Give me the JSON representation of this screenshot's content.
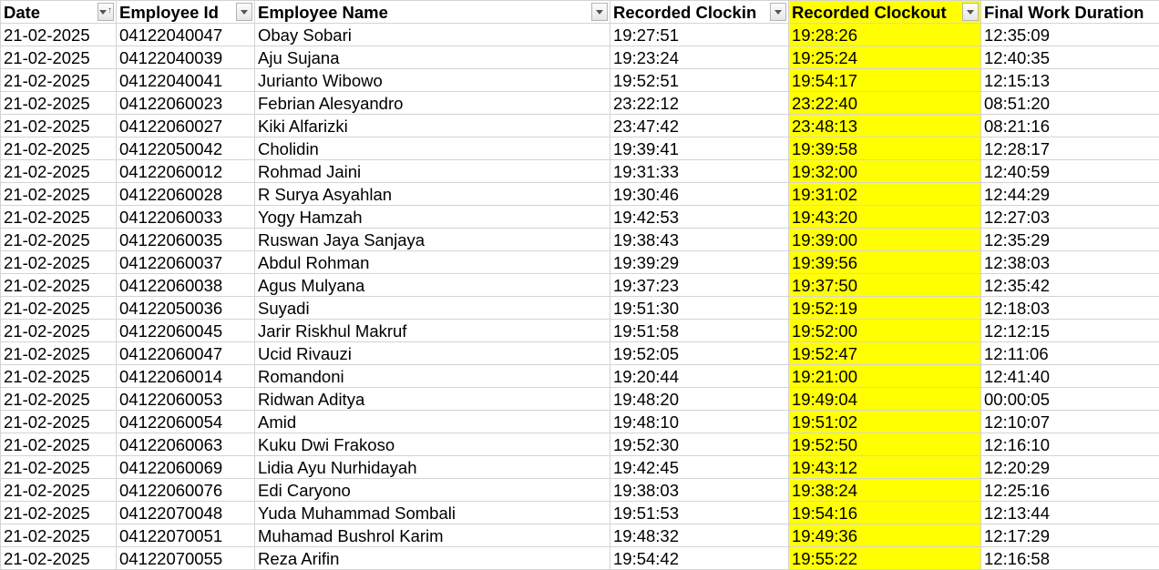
{
  "headers": {
    "date": "Date",
    "employee_id": "Employee Id",
    "employee_name": "Employee Name",
    "recorded_clockin": "Recorded Clockin",
    "recorded_clockout": "Recorded Clockout",
    "final_work_duration": "Final Work Duration"
  },
  "highlight_color": "#ffff00",
  "rows": [
    {
      "date": "21-02-2025",
      "id": "04122040047",
      "name": "Obay Sobari",
      "clockin": "19:27:51",
      "clockout": "19:28:26",
      "duration": "12:35:09"
    },
    {
      "date": "21-02-2025",
      "id": "04122040039",
      "name": "Aju Sujana",
      "clockin": "19:23:24",
      "clockout": "19:25:24",
      "duration": "12:40:35"
    },
    {
      "date": "21-02-2025",
      "id": "04122040041",
      "name": "Jurianto Wibowo",
      "clockin": "19:52:51",
      "clockout": "19:54:17",
      "duration": "12:15:13"
    },
    {
      "date": "21-02-2025",
      "id": "04122060023",
      "name": "Febrian Alesyandro",
      "clockin": "23:22:12",
      "clockout": "23:22:40",
      "duration": "08:51:20"
    },
    {
      "date": "21-02-2025",
      "id": "04122060027",
      "name": "Kiki Alfarizki",
      "clockin": "23:47:42",
      "clockout": "23:48:13",
      "duration": "08:21:16"
    },
    {
      "date": "21-02-2025",
      "id": "04122050042",
      "name": "Cholidin",
      "clockin": "19:39:41",
      "clockout": "19:39:58",
      "duration": "12:28:17"
    },
    {
      "date": "21-02-2025",
      "id": "04122060012",
      "name": "Rohmad Jaini",
      "clockin": "19:31:33",
      "clockout": "19:32:00",
      "duration": "12:40:59"
    },
    {
      "date": "21-02-2025",
      "id": "04122060028",
      "name": "R Surya Asyahlan",
      "clockin": "19:30:46",
      "clockout": "19:31:02",
      "duration": "12:44:29"
    },
    {
      "date": "21-02-2025",
      "id": "04122060033",
      "name": "Yogy Hamzah",
      "clockin": "19:42:53",
      "clockout": "19:43:20",
      "duration": "12:27:03"
    },
    {
      "date": "21-02-2025",
      "id": "04122060035",
      "name": "Ruswan Jaya Sanjaya",
      "clockin": "19:38:43",
      "clockout": "19:39:00",
      "duration": "12:35:29"
    },
    {
      "date": "21-02-2025",
      "id": "04122060037",
      "name": "Abdul Rohman",
      "clockin": "19:39:29",
      "clockout": "19:39:56",
      "duration": "12:38:03"
    },
    {
      "date": "21-02-2025",
      "id": "04122060038",
      "name": "Agus Mulyana",
      "clockin": "19:37:23",
      "clockout": "19:37:50",
      "duration": "12:35:42"
    },
    {
      "date": "21-02-2025",
      "id": "04122050036",
      "name": "Suyadi",
      "clockin": "19:51:30",
      "clockout": "19:52:19",
      "duration": "12:18:03"
    },
    {
      "date": "21-02-2025",
      "id": "04122060045",
      "name": "Jarir Riskhul Makruf",
      "clockin": "19:51:58",
      "clockout": "19:52:00",
      "duration": "12:12:15"
    },
    {
      "date": "21-02-2025",
      "id": "04122060047",
      "name": "Ucid Rivauzi",
      "clockin": "19:52:05",
      "clockout": "19:52:47",
      "duration": "12:11:06"
    },
    {
      "date": "21-02-2025",
      "id": "04122060014",
      "name": "Romandoni",
      "clockin": "19:20:44",
      "clockout": "19:21:00",
      "duration": "12:41:40"
    },
    {
      "date": "21-02-2025",
      "id": "04122060053",
      "name": "Ridwan Aditya",
      "clockin": "19:48:20",
      "clockout": "19:49:04",
      "duration": "00:00:05"
    },
    {
      "date": "21-02-2025",
      "id": "04122060054",
      "name": "Amid",
      "clockin": "19:48:10",
      "clockout": "19:51:02",
      "duration": "12:10:07"
    },
    {
      "date": "21-02-2025",
      "id": "04122060063",
      "name": "Kuku Dwi Frakoso",
      "clockin": "19:52:30",
      "clockout": "19:52:50",
      "duration": "12:16:10"
    },
    {
      "date": "21-02-2025",
      "id": "04122060069",
      "name": "Lidia Ayu Nurhidayah",
      "clockin": "19:42:45",
      "clockout": "19:43:12",
      "duration": "12:20:29"
    },
    {
      "date": "21-02-2025",
      "id": "04122060076",
      "name": "Edi Caryono",
      "clockin": "19:38:03",
      "clockout": "19:38:24",
      "duration": "12:25:16"
    },
    {
      "date": "21-02-2025",
      "id": "04122070048",
      "name": "Yuda Muhammad Sombali",
      "clockin": "19:51:53",
      "clockout": "19:54:16",
      "duration": "12:13:44"
    },
    {
      "date": "21-02-2025",
      "id": "04122070051",
      "name": "Muhamad Bushrol Karim",
      "clockin": "19:48:32",
      "clockout": "19:49:36",
      "duration": "12:17:29"
    },
    {
      "date": "21-02-2025",
      "id": "04122070055",
      "name": "Reza Arifin",
      "clockin": "19:54:42",
      "clockout": "19:55:22",
      "duration": "12:16:58"
    }
  ]
}
